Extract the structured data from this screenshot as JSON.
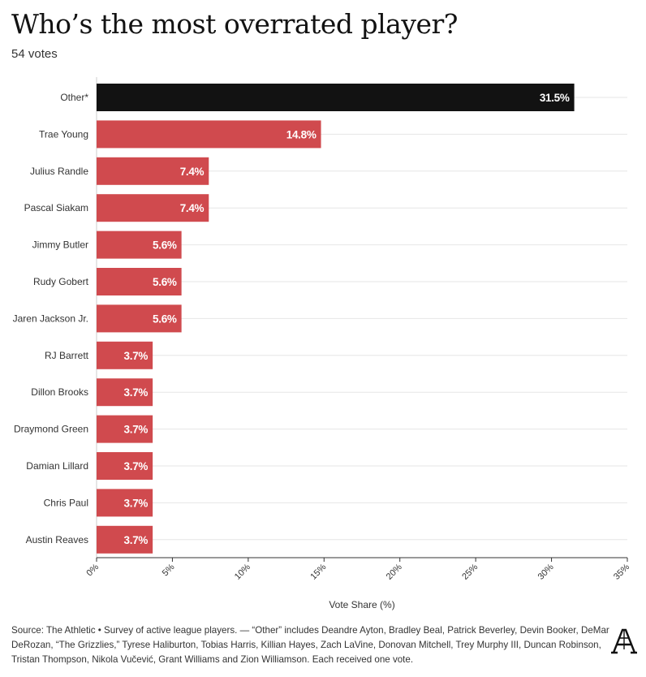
{
  "title": "Who’s the most overrated player?",
  "subtitle": "54 votes",
  "source": "Source: The Athletic • Survey of active league players. — “Other” includes Deandre Ayton, Bradley Beal, Patrick Beverley, Devin Booker, DeMar DeRozan, “The Grizzlies,” Tyrese Haliburton, Tobias Harris, Killian Hayes, Zach LaVine, Donovan Mitchell, Trey Murphy III, Duncan Robinson, Tristan Thompson, Nikola Vučević, Grant Williams and Zion Williamson. Each received one vote.",
  "logo_icon": "the-athletic-logo",
  "colors": {
    "highlight": "#121212",
    "bar": "#d04a4e",
    "grid": "#e6e6e6"
  },
  "chart_data": {
    "type": "bar",
    "orientation": "horizontal",
    "categories": [
      "Other*",
      "Trae Young",
      "Julius Randle",
      "Pascal Siakam",
      "Jimmy Butler",
      "Rudy Gobert",
      "Jaren Jackson Jr.",
      "RJ Barrett",
      "Dillon Brooks",
      "Draymond Green",
      "Damian Lillard",
      "Chris Paul",
      "Austin Reaves"
    ],
    "values": [
      31.5,
      14.8,
      7.4,
      7.4,
      5.6,
      5.6,
      5.6,
      3.7,
      3.7,
      3.7,
      3.7,
      3.7,
      3.7
    ],
    "value_labels": [
      "31.5%",
      "14.8%",
      "7.4%",
      "7.4%",
      "5.6%",
      "5.6%",
      "5.6%",
      "3.7%",
      "3.7%",
      "3.7%",
      "3.7%",
      "3.7%",
      "3.7%"
    ],
    "highlight_index": 0,
    "xlim": [
      0,
      35
    ],
    "xticks": [
      0,
      5,
      10,
      15,
      20,
      25,
      30,
      35
    ],
    "xtick_labels": [
      "0%",
      "5%",
      "10%",
      "15%",
      "20%",
      "25%",
      "30%",
      "35%"
    ],
    "xlabel": "Vote Share (%)",
    "grid": true
  }
}
